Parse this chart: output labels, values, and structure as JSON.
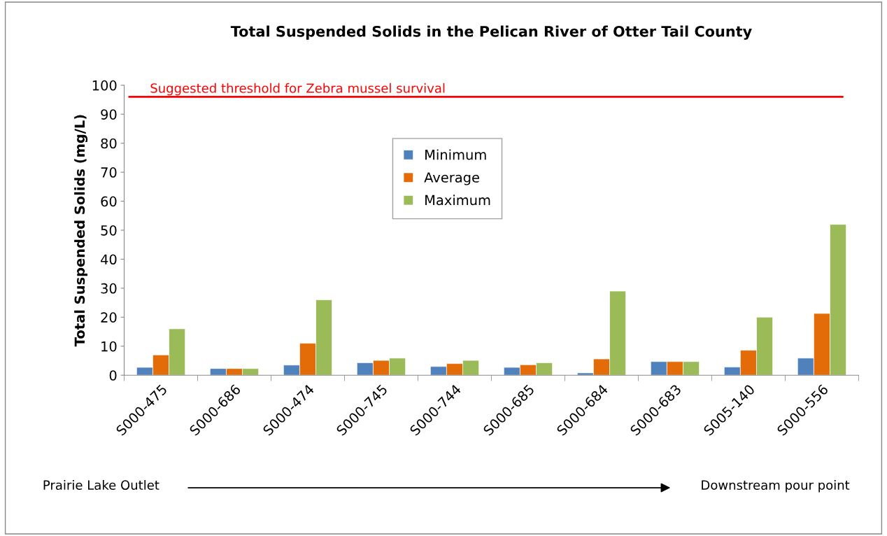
{
  "chart_data": {
    "type": "bar",
    "title": "Total Suspended Solids in the Pelican River of Otter Tail County",
    "ylabel": "Total Suspended Solids (mg/L)",
    "categories": [
      "S000-475",
      "S000-686",
      "S000-474",
      "S000-745",
      "S000-744",
      "S000-685",
      "S000-684",
      "S000-683",
      "S005-140",
      "S000-556"
    ],
    "series": [
      {
        "name": "Minimum",
        "color": "#4f81bd",
        "values": [
          2.7,
          2.3,
          3.5,
          4.3,
          3.0,
          2.7,
          0.8,
          4.7,
          2.8,
          5.9
        ]
      },
      {
        "name": "Average",
        "color": "#e36c09",
        "values": [
          7.0,
          2.3,
          11.0,
          5.1,
          4.0,
          3.6,
          5.6,
          4.7,
          8.6,
          21.3
        ]
      },
      {
        "name": "Maximum",
        "color": "#9bbb59",
        "values": [
          16,
          2.3,
          26,
          5.9,
          5.1,
          4.3,
          29,
          4.7,
          20,
          52
        ]
      }
    ],
    "ylim": [
      0,
      100
    ],
    "yticks": [
      0,
      10,
      20,
      30,
      40,
      50,
      60,
      70,
      80,
      90,
      100
    ],
    "ref_lines": [
      {
        "axis": "y",
        "value": 96,
        "label": "Suggested threshold for Zebra mussel survival",
        "color": "#ff0000"
      }
    ],
    "annotations": [
      "Prairie Lake Outlet",
      "Downstream pour point"
    ],
    "legend": "top",
    "grid": false
  }
}
